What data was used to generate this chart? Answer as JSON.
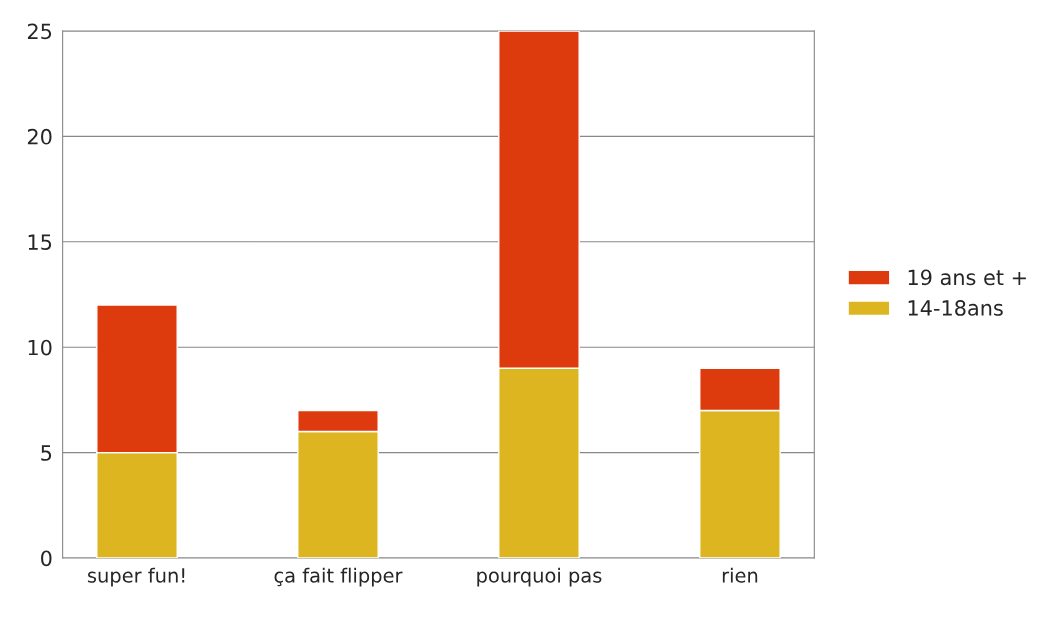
{
  "chart_data": {
    "type": "bar",
    "stacked": true,
    "categories": [
      "super fun!",
      "ça fait flipper",
      "pourquoi pas",
      "rien"
    ],
    "series": [
      {
        "name": "14-18ans",
        "color": "#dcb520",
        "values": [
          5,
          6,
          9,
          7
        ]
      },
      {
        "name": "19 ans et +",
        "color": "#dd3a0e",
        "values": [
          7,
          1,
          16,
          2
        ]
      }
    ],
    "ylim": [
      0,
      25
    ],
    "yticks": [
      0,
      5,
      10,
      15,
      20,
      25
    ],
    "grid": "y",
    "legend": "right"
  }
}
